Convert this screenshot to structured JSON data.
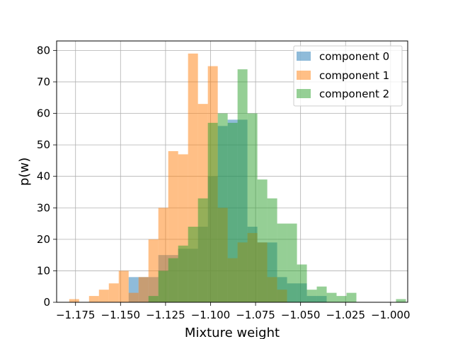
{
  "chart_data": {
    "type": "histogram",
    "xlabel": "Mixture weight",
    "ylabel": "p(w)",
    "xlim": [
      -1.1855,
      -0.9905
    ],
    "ylim": [
      0,
      83
    ],
    "x_ticks": [
      -1.175,
      -1.15,
      -1.125,
      -1.1,
      -1.075,
      -1.05,
      -1.025,
      -1.0
    ],
    "x_tick_labels": [
      "−1.175",
      "−1.150",
      "−1.125",
      "−1.100",
      "−1.075",
      "−1.050",
      "−1.025",
      "−1.000"
    ],
    "y_ticks": [
      0,
      10,
      20,
      30,
      40,
      50,
      60,
      70,
      80
    ],
    "grid": true,
    "legend_position": "top-right",
    "bin_width": 0.0055,
    "series": [
      {
        "name": "component 0",
        "color": "#1f77b4",
        "alpha": 0.5,
        "x_start": -1.1455,
        "counts": [
          8,
          8,
          8,
          15,
          15,
          17,
          17,
          24,
          40,
          56,
          58,
          58,
          24,
          19,
          19,
          8,
          6,
          6,
          2,
          2
        ]
      },
      {
        "name": "component 1",
        "color": "#ff7f0e",
        "alpha": 0.5,
        "x_start": -1.1785,
        "counts": [
          1,
          0,
          2,
          4,
          6,
          10,
          3,
          8,
          20,
          30,
          48,
          47,
          79,
          63,
          75,
          30,
          14,
          19,
          22,
          19,
          8,
          4
        ]
      },
      {
        "name": "component 2",
        "color": "#2ca02c",
        "alpha": 0.5,
        "x_start": -1.1345,
        "counts": [
          2,
          10,
          14,
          18,
          24,
          33,
          57,
          60,
          57,
          74,
          60,
          39,
          33,
          25,
          25,
          12,
          4,
          5,
          3,
          2,
          3,
          0,
          0,
          0,
          0,
          1
        ]
      }
    ]
  }
}
